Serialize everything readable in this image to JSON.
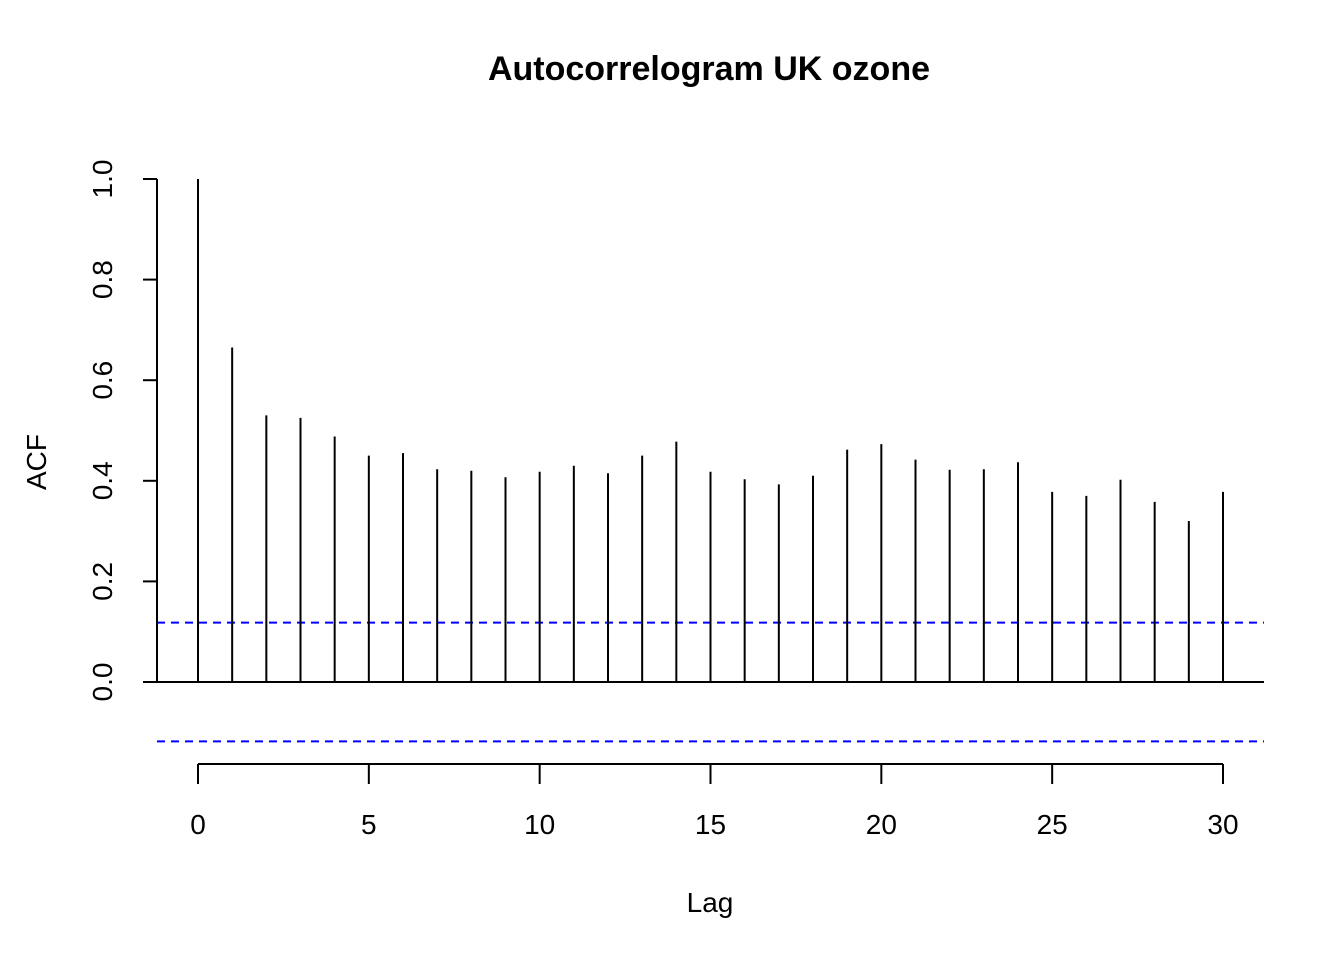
{
  "chart_data": {
    "type": "bar",
    "title": "Autocorrelogram UK ozone",
    "xlabel": "Lag",
    "ylabel": "ACF",
    "xlim": [
      -1.2,
      31.2
    ],
    "ylim": [
      -0.15,
      1.0
    ],
    "x_ticks": [
      0,
      5,
      10,
      15,
      20,
      25,
      30
    ],
    "y_ticks": [
      0.0,
      0.2,
      0.4,
      0.6,
      0.8,
      1.0
    ],
    "x_tick_labels": [
      "0",
      "5",
      "10",
      "15",
      "20",
      "25",
      "30"
    ],
    "y_tick_labels": [
      "0.0",
      "0.2",
      "0.4",
      "0.6",
      "0.8",
      "1.0"
    ],
    "lags": [
      0,
      1,
      2,
      3,
      4,
      5,
      6,
      7,
      8,
      9,
      10,
      11,
      12,
      13,
      14,
      15,
      16,
      17,
      18,
      19,
      20,
      21,
      22,
      23,
      24,
      25,
      26,
      27,
      28,
      29,
      30
    ],
    "values": [
      1.0,
      0.665,
      0.53,
      0.525,
      0.488,
      0.45,
      0.455,
      0.423,
      0.42,
      0.407,
      0.418,
      0.43,
      0.415,
      0.45,
      0.478,
      0.418,
      0.403,
      0.393,
      0.41,
      0.462,
      0.473,
      0.442,
      0.422,
      0.423,
      0.437,
      0.378,
      0.37,
      0.402,
      0.358,
      0.32,
      0.378
    ],
    "confidence_bounds": [
      0.118,
      -0.118
    ],
    "bar_color": "#000000",
    "bound_color": "#0000ff",
    "grid": false
  }
}
